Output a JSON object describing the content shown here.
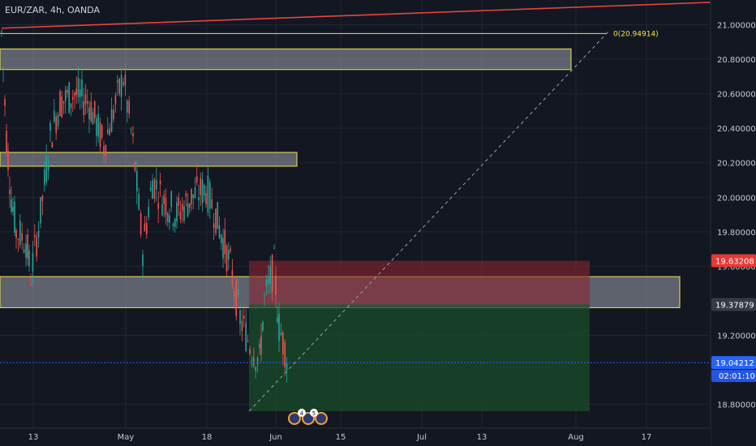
{
  "symbol_title": "EUR/ZAR, 4h, OANDA",
  "colors": {
    "background": "#131722",
    "grid": "#232733",
    "axis_text": "#c6cad3",
    "up_candle": "#26a69a",
    "down_candle": "#ef5350",
    "zone_fill": "#9aa0ab",
    "zone_border": "#f5e44d",
    "trendline": "#e8453c",
    "stop_zone": "#8a2530",
    "target_zone": "#1a4d2a",
    "current_price_line": "#2962ff",
    "stop_label_bg": "#e53935",
    "price_label_bg": "#2962ff",
    "axis_label_bg": "#363a45"
  },
  "chart_data": {
    "type": "candlestick",
    "title": "EUR/ZAR, 4h, OANDA",
    "ylim": [
      18.72,
      21.16
    ],
    "y_ticks": [
      "21.00000",
      "20.80000",
      "20.60000",
      "20.40000",
      "20.20000",
      "20.00000",
      "19.80000",
      "19.60000",
      "19.20000",
      "18.80000"
    ],
    "x_ticks": [
      "13",
      "May",
      "18",
      "Jun",
      "15",
      "Jul",
      "13",
      "Aug",
      "17"
    ],
    "price_path": [
      {
        "t": "Apr 6",
        "p": 20.95
      },
      {
        "t": "Apr 7",
        "p": 20.35
      },
      {
        "t": "Apr 8",
        "p": 20.0
      },
      {
        "t": "Apr 9",
        "p": 19.8
      },
      {
        "t": "Apr 11",
        "p": 19.75
      },
      {
        "t": "Apr 12",
        "p": 19.55
      },
      {
        "t": "Apr 14",
        "p": 19.9
      },
      {
        "t": "Apr 16",
        "p": 20.35
      },
      {
        "t": "Apr 18",
        "p": 20.55
      },
      {
        "t": "Apr 21",
        "p": 20.6
      },
      {
        "t": "Apr 24",
        "p": 20.55
      },
      {
        "t": "Apr 27",
        "p": 20.3
      },
      {
        "t": "Apr 29",
        "p": 20.5
      },
      {
        "t": "May 1",
        "p": 20.7
      },
      {
        "t": "May 3",
        "p": 20.3
      },
      {
        "t": "May 5",
        "p": 19.7
      },
      {
        "t": "May 7",
        "p": 20.1
      },
      {
        "t": "May 9",
        "p": 20.0
      },
      {
        "t": "May 12",
        "p": 19.9
      },
      {
        "t": "May 15",
        "p": 20.0
      },
      {
        "t": "May 18",
        "p": 20.05
      },
      {
        "t": "May 20",
        "p": 19.9
      },
      {
        "t": "May 23",
        "p": 19.6
      },
      {
        "t": "May 25",
        "p": 19.3
      },
      {
        "t": "May 27",
        "p": 19.15
      },
      {
        "t": "May 29",
        "p": 19.05
      },
      {
        "t": "May 30",
        "p": 19.4
      },
      {
        "t": "Jun 1",
        "p": 19.6
      },
      {
        "t": "Jun 2",
        "p": 19.25
      },
      {
        "t": "Jun 4",
        "p": 19.04
      }
    ],
    "horizontal_line": {
      "label": "0(20.94914)",
      "value": 20.94914
    },
    "zones": [
      {
        "name": "resistance-zone-top",
        "from_t": "Apr 6",
        "to_t": "Jul 31",
        "low": 20.74,
        "high": 20.86
      },
      {
        "name": "resistance-zone-mid",
        "from_t": "Apr 6",
        "to_t": "May 31",
        "low": 20.18,
        "high": 20.26
      },
      {
        "name": "support-zone",
        "from_t": "Apr 6",
        "to_t": "Aug 8",
        "low": 19.36,
        "high": 19.54
      }
    ],
    "position": {
      "from_t": "May 28",
      "to_t": "Aug 2",
      "stop": 19.63208,
      "entry": 19.37879,
      "target": 18.76
    },
    "trendline": {
      "from_t": "Apr 6",
      "from_p": 20.98,
      "to_t": "Aug 28",
      "to_p": 21.13
    },
    "projection_line": {
      "from_t": "May 28",
      "from_p": 18.76,
      "to_t": "Aug 3",
      "to_p": 20.97
    },
    "price_labels": {
      "stop": "19.63208",
      "entry": "19.37879",
      "current": "19.04212",
      "countdown": "02:01:10"
    },
    "current_price": 19.04212,
    "events": [
      "4",
      "5"
    ]
  }
}
